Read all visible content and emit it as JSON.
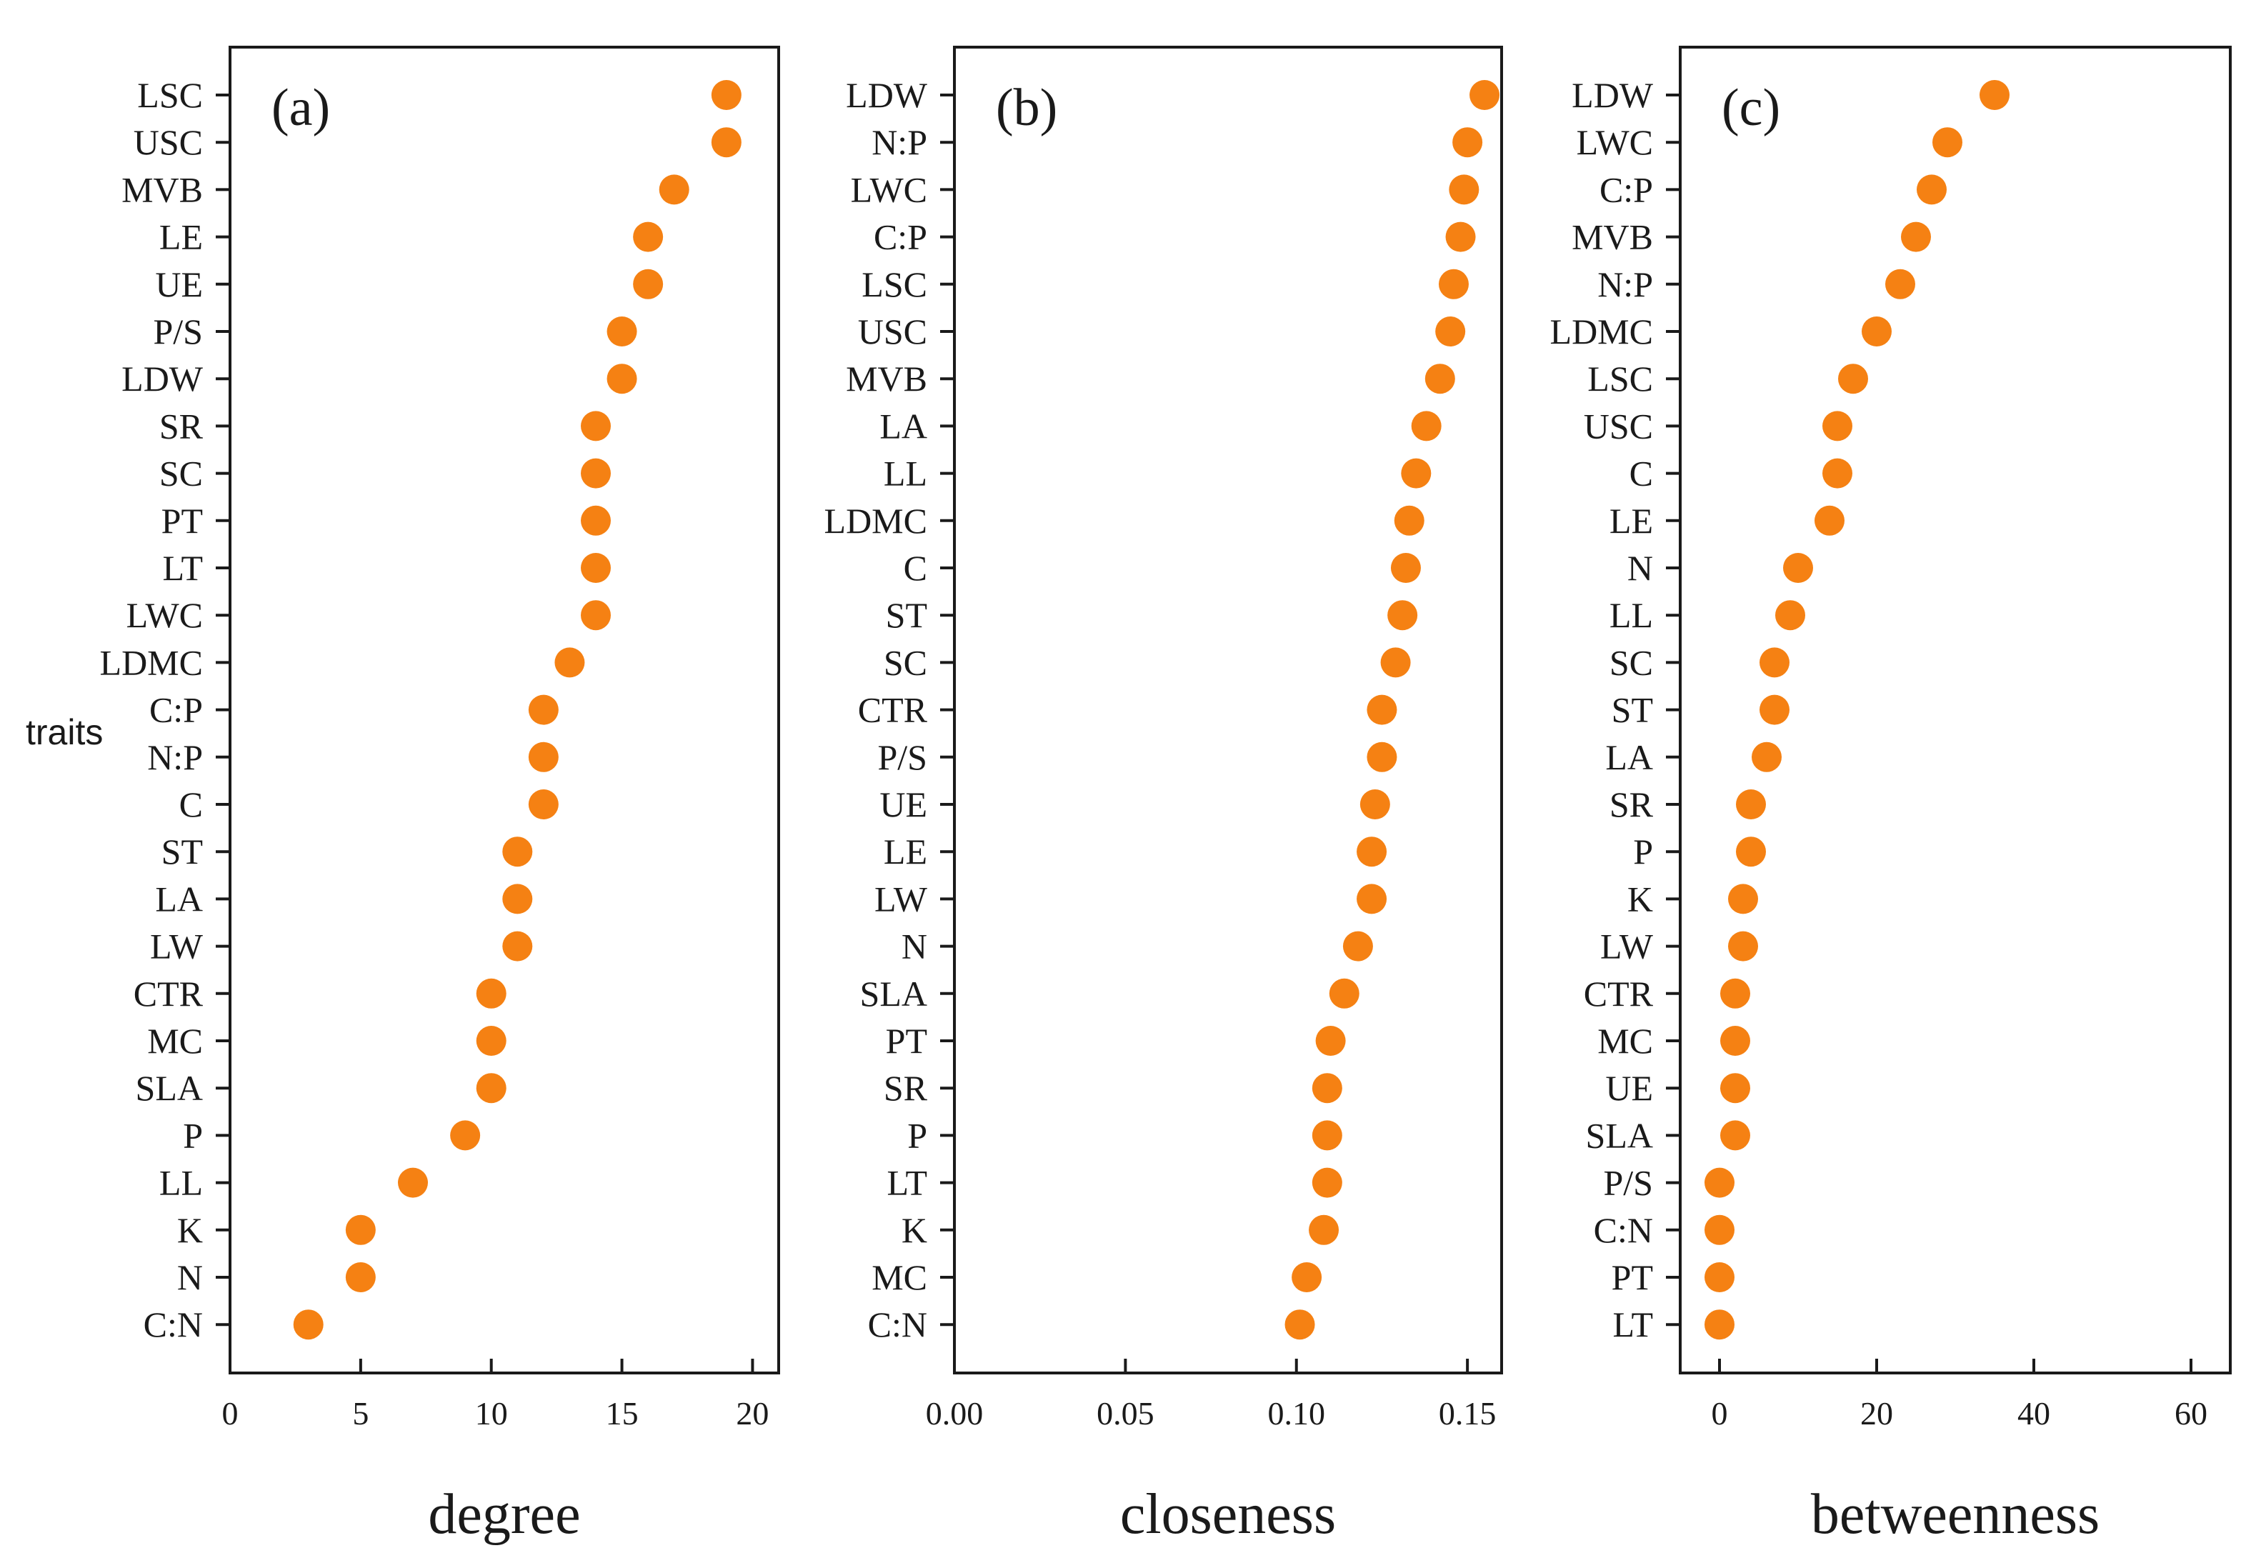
{
  "marker_color": "#F58113",
  "chart_data": [
    {
      "type": "scatter",
      "panel_label": "(a)",
      "xlabel": "degree",
      "ylabel": "traits",
      "xlim": [
        0,
        21
      ],
      "xticks": [
        0,
        5,
        10,
        15,
        20
      ],
      "grid": false,
      "categories": [
        "LSC",
        "USC",
        "MVB",
        "LE",
        "UE",
        "P/S",
        "LDW",
        "SR",
        "SC",
        "PT",
        "LT",
        "LWC",
        "LDMC",
        "C:P",
        "N:P",
        "C",
        "ST",
        "LA",
        "LW",
        "CTR",
        "MC",
        "SLA",
        "P",
        "LL",
        "K",
        "N",
        "C:N"
      ],
      "values": [
        19,
        19,
        17,
        16,
        16,
        15,
        15,
        14,
        14,
        14,
        14,
        14,
        13,
        12,
        12,
        12,
        11,
        11,
        11,
        10,
        10,
        10,
        9,
        7,
        5,
        5,
        3
      ]
    },
    {
      "type": "scatter",
      "panel_label": "(b)",
      "xlabel": "closeness",
      "ylabel": "",
      "xlim": [
        0,
        0.16
      ],
      "xticks": [
        "0.00",
        "0.05",
        "0.10",
        "0.15"
      ],
      "grid": false,
      "categories": [
        "LDW",
        "N:P",
        "LWC",
        "C:P",
        "LSC",
        "USC",
        "MVB",
        "LA",
        "LL",
        "LDMC",
        "C",
        "ST",
        "SC",
        "CTR",
        "P/S",
        "UE",
        "LE",
        "LW",
        "N",
        "SLA",
        "PT",
        "SR",
        "P",
        "LT",
        "K",
        "MC",
        "C:N"
      ],
      "values": [
        0.155,
        0.15,
        0.149,
        0.148,
        0.146,
        0.145,
        0.142,
        0.138,
        0.135,
        0.133,
        0.132,
        0.131,
        0.129,
        0.125,
        0.125,
        0.123,
        0.122,
        0.122,
        0.118,
        0.114,
        0.11,
        0.109,
        0.109,
        0.109,
        0.108,
        0.103,
        0.101
      ]
    },
    {
      "type": "scatter",
      "panel_label": "(c)",
      "xlabel": "betweenness",
      "ylabel": "",
      "xlim": [
        -5,
        65
      ],
      "xticks": [
        0,
        20,
        40,
        60
      ],
      "grid": false,
      "categories": [
        "LDW",
        "LWC",
        "C:P",
        "MVB",
        "N:P",
        "LDMC",
        "LSC",
        "USC",
        "C",
        "LE",
        "N",
        "LL",
        "SC",
        "ST",
        "LA",
        "SR",
        "P",
        "K",
        "LW",
        "CTR",
        "MC",
        "UE",
        "SLA",
        "P/S",
        "C:N",
        "PT",
        "LT"
      ],
      "values": [
        35,
        29,
        27,
        25,
        23,
        20,
        17,
        15,
        15,
        14,
        10,
        9,
        7,
        7,
        6,
        4,
        4,
        3,
        3,
        2,
        2,
        2,
        2,
        0,
        0,
        0,
        0
      ]
    }
  ]
}
